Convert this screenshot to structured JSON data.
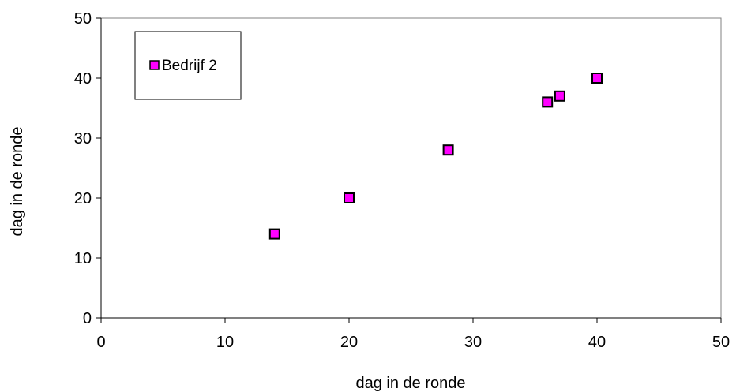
{
  "chart_data": {
    "type": "scatter",
    "xlabel": "dag in de ronde",
    "ylabel": "dag in de ronde",
    "xlim": [
      0,
      50
    ],
    "ylim": [
      0,
      50
    ],
    "xticks": [
      0,
      10,
      20,
      30,
      40,
      50
    ],
    "yticks": [
      0,
      10,
      20,
      30,
      40,
      50
    ],
    "grid": false,
    "legend_position": "top-left",
    "series": [
      {
        "name": "Bedrijf 2",
        "marker": "square",
        "color": "#FF00FF",
        "points": [
          {
            "x": 14,
            "y": 14
          },
          {
            "x": 20,
            "y": 20
          },
          {
            "x": 28,
            "y": 28
          },
          {
            "x": 36,
            "y": 36
          },
          {
            "x": 37,
            "y": 37
          },
          {
            "x": 40,
            "y": 40
          }
        ]
      }
    ]
  }
}
